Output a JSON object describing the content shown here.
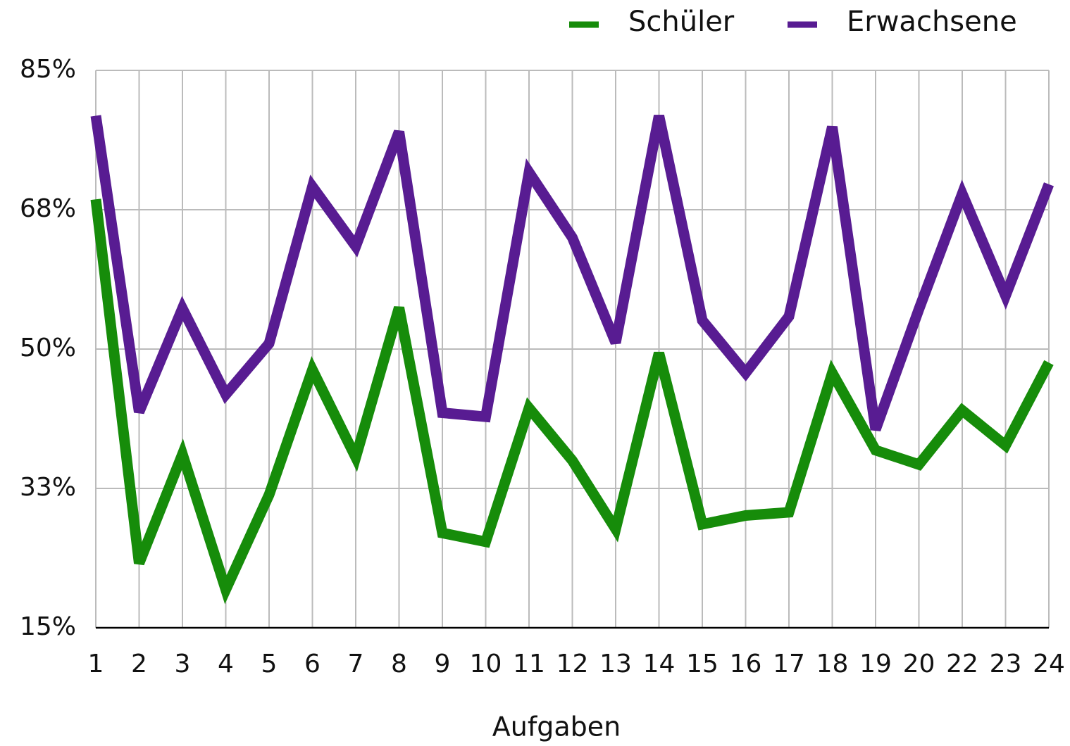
{
  "chart_data": {
    "type": "line",
    "x_label": "Aufgaben",
    "categories": [
      "1",
      "2",
      "3",
      "4",
      "5",
      "6",
      "7",
      "8",
      "9",
      "10",
      "11",
      "12",
      "13",
      "14",
      "15",
      "16",
      "17",
      "18",
      "19",
      "20",
      "22",
      "23",
      "24"
    ],
    "series": [
      {
        "name": "Schüler",
        "color": "#168c0a",
        "values": [
          68.8,
          23.1,
          36.8,
          19.8,
          31.7,
          47.4,
          36.4,
          55.2,
          26.9,
          25.8,
          42.6,
          36.0,
          27.4,
          49.5,
          28.0,
          29.1,
          29.5,
          47.0,
          37.3,
          35.5,
          42.3,
          37.9,
          48.3
        ]
      },
      {
        "name": "Erwachsene",
        "color": "#581c92",
        "values": [
          79.3,
          42.1,
          55.1,
          44.3,
          50.7,
          70.4,
          62.9,
          77.3,
          42.0,
          41.5,
          72.2,
          64.0,
          50.8,
          79.3,
          53.6,
          47.0,
          54.1,
          77.9,
          39.9,
          55.0,
          69.5,
          56.7,
          70.7
        ]
      }
    ],
    "ylim": [
      15,
      85
    ],
    "yticks": [
      {
        "value": 15,
        "label": "15%"
      },
      {
        "value": 32.5,
        "label": "33%"
      },
      {
        "value": 50,
        "label": "50%"
      },
      {
        "value": 67.5,
        "label": "68%"
      },
      {
        "value": 85,
        "label": "85%"
      }
    ],
    "grid": true,
    "legend": "top-right"
  }
}
